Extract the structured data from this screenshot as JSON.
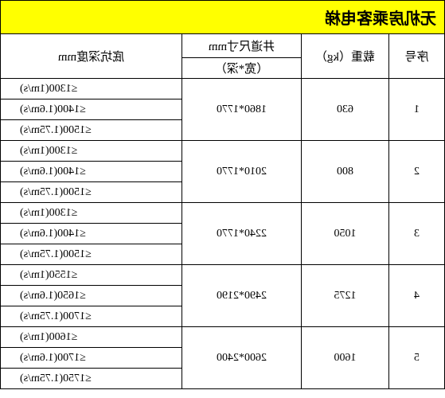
{
  "title": "无机房乘客电梯",
  "headers": {
    "seq": "序号",
    "load": "载重（kg）",
    "shaft_top": "井道尺寸mm",
    "shaft_sub": "（宽*深）",
    "pit": "底坑深度mm"
  },
  "rows": [
    {
      "seq": "1",
      "load": "630",
      "shaft": "1860*1770",
      "pits": [
        "≤1300(1m/s)",
        "≤1400(1.6m/s)",
        "≤1500(1.75m/s)"
      ]
    },
    {
      "seq": "2",
      "load": "800",
      "shaft": "2010*1770",
      "pits": [
        "≤1300(1m/s)",
        "≤1400(1.6m/s)",
        "≤1500(1.75m/s)"
      ]
    },
    {
      "seq": "3",
      "load": "1050",
      "shaft": "2240*1770",
      "pits": [
        "≤1300(1m/s)",
        "≤1400(1.6m/s)",
        "≤1500(1.75m/s)"
      ]
    },
    {
      "seq": "4",
      "load": "1275",
      "shaft": "2490*2190",
      "pits": [
        "≤1550(1m/s)",
        "≤1650(1.6m/s)",
        "≤1700(1.75m/s)"
      ]
    },
    {
      "seq": "5",
      "load": "1600",
      "shaft": "2600*2400",
      "pits": [
        "≤1600(1m/s)",
        "≤1700(1.6m/s)",
        "≤1750(1.75m/s)"
      ]
    }
  ],
  "colors": {
    "title_bg": "#ffff00",
    "border": "#000000",
    "background": "#ffffff",
    "text": "#000000"
  }
}
